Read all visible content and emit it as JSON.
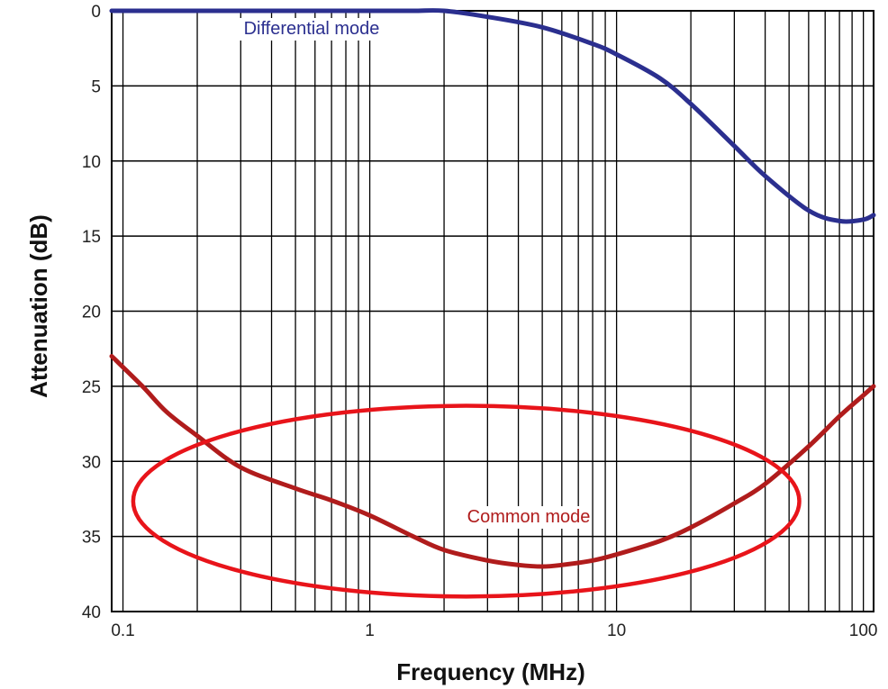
{
  "chart_data": {
    "type": "line",
    "xlabel": "Frequency (MHz)",
    "ylabel": "Attenuation (dB)",
    "x_scale": "log",
    "xlim": [
      0.09,
      110
    ],
    "ylim": [
      40,
      0
    ],
    "y_inverted": true,
    "grid": true,
    "x_ticks": [
      0.1,
      1,
      10,
      100
    ],
    "x_tick_labels": [
      "0.1",
      "1",
      "10",
      "100"
    ],
    "y_ticks": [
      0,
      5,
      10,
      15,
      20,
      25,
      30,
      35,
      40
    ],
    "y_tick_labels": [
      "0",
      "5",
      "10",
      "15",
      "20",
      "25",
      "30",
      "35",
      "40"
    ],
    "series": [
      {
        "name": "Differential mode",
        "color": "#2b2f8f",
        "x": [
          0.09,
          0.2,
          0.5,
          1,
          1.5,
          2,
          3,
          5,
          8,
          10,
          15,
          20,
          30,
          40,
          60,
          80,
          100,
          110
        ],
        "y": [
          0,
          0,
          0,
          0,
          0,
          0,
          0.4,
          1.1,
          2.2,
          2.9,
          4.5,
          6.2,
          9.0,
          11.0,
          13.3,
          14.0,
          13.9,
          13.6
        ]
      },
      {
        "name": "Common mode",
        "color": "#b01c1c",
        "x": [
          0.09,
          0.12,
          0.15,
          0.2,
          0.3,
          0.5,
          0.7,
          1,
          1.5,
          2,
          3,
          4,
          5,
          6,
          8,
          10,
          15,
          20,
          30,
          40,
          60,
          80,
          100,
          110
        ],
        "y": [
          23.0,
          25.0,
          26.7,
          28.3,
          30.4,
          31.8,
          32.6,
          33.6,
          35.0,
          35.9,
          36.6,
          36.9,
          37.0,
          36.9,
          36.6,
          36.2,
          35.3,
          34.4,
          32.8,
          31.5,
          29.0,
          27.0,
          25.6,
          25.0
        ]
      }
    ],
    "annotations": [
      {
        "text": "Differential mode",
        "color": "#2b2f8f",
        "series": "Differential mode"
      },
      {
        "text": "Common mode",
        "color": "#b01c1c",
        "series": "Common mode"
      },
      {
        "shape": "ellipse",
        "color": "#e8141a",
        "cx_x": 4.4,
        "cy_y": 33.5,
        "x_range": [
          0.11,
          55
        ],
        "y_range": [
          26.3,
          39.0
        ]
      }
    ]
  }
}
